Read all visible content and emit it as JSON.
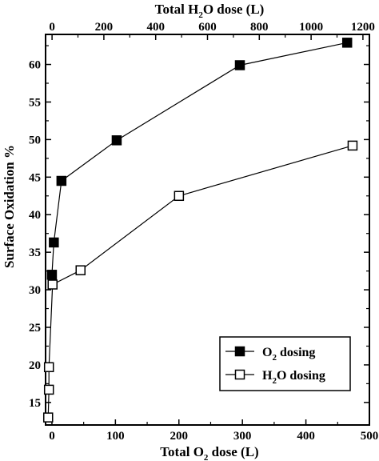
{
  "chart_data": {
    "type": "line",
    "xlabel_bottom": {
      "prefix": "Total O",
      "sub": "2",
      "suffix": " dose (L)"
    },
    "xlabel_top": {
      "prefix": "Total H",
      "sub": "2",
      "suffix": "O dose (L)"
    },
    "ylabel": "Surface Oxidation %",
    "bottom_axis": {
      "min": -10,
      "max": 500,
      "ticks": [
        0,
        100,
        200,
        300,
        400,
        500
      ]
    },
    "top_axis": {
      "min": -25,
      "max": 1225,
      "ticks": [
        0,
        200,
        400,
        600,
        800,
        1000,
        1200
      ]
    },
    "y_axis": {
      "min": 12,
      "max": 64,
      "ticks": [
        15,
        20,
        25,
        30,
        35,
        40,
        45,
        50,
        55,
        60
      ]
    },
    "legend_position": "bottom-right",
    "series": [
      {
        "name_prefix": "O",
        "name_sub": "2",
        "name_suffix": " dosing",
        "axis": "bottom",
        "marker": "filled-square",
        "x": [
          0,
          3,
          15,
          102,
          296,
          465
        ],
        "y": [
          32,
          36.3,
          44.5,
          49.9,
          59.9,
          62.9
        ]
      },
      {
        "name_prefix": "H",
        "name_sub": "2",
        "name_suffix": "O dosing",
        "axis": "top",
        "marker": "open-square",
        "x": [
          -15,
          -12,
          -12,
          2,
          110,
          490,
          1160
        ],
        "y": [
          13,
          16.7,
          19.7,
          30.7,
          32.6,
          42.5,
          49.2
        ]
      }
    ]
  }
}
